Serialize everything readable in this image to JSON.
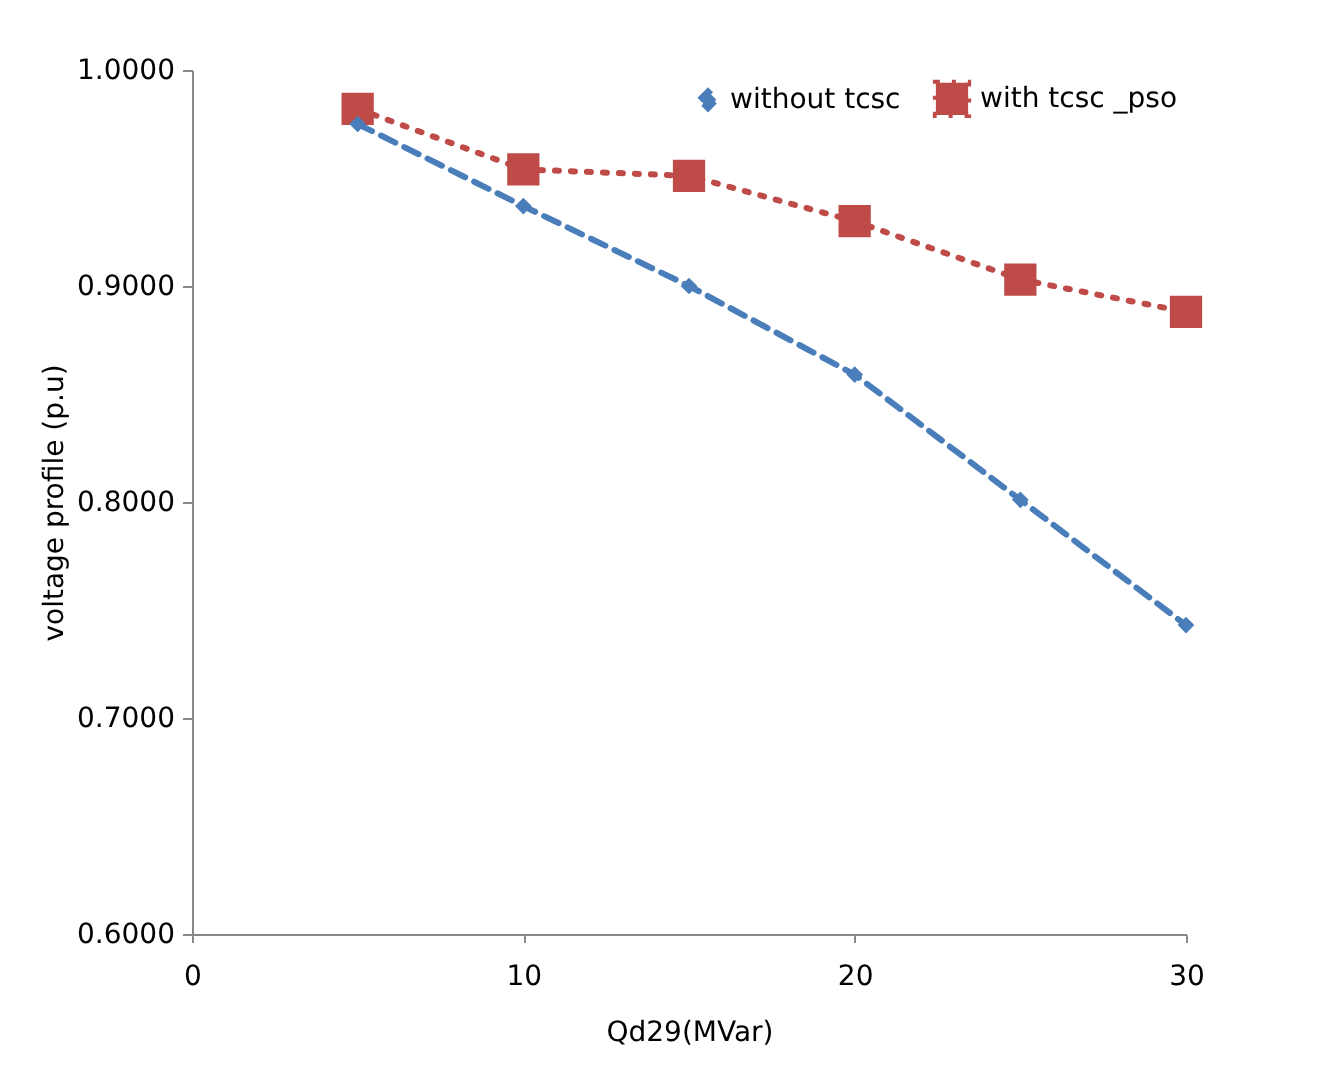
{
  "chart_data": {
    "type": "line",
    "xlabel": "Qd29(MVar)",
    "ylabel": "voltage profile (p.u)",
    "x": [
      5,
      10,
      15,
      20,
      25,
      30
    ],
    "series": [
      {
        "name": "without tcsc",
        "color": "#4a7ebb",
        "values": [
          0.975,
          0.937,
          0.9,
          0.859,
          0.801,
          0.743
        ],
        "marker": "diamond",
        "line_style": "dashed"
      },
      {
        "name": "with tcsc _pso",
        "color": "#be4b48",
        "values": [
          0.982,
          0.954,
          0.951,
          0.93,
          0.903,
          0.888
        ],
        "marker": "square",
        "line_style": "dotted"
      }
    ],
    "xlim": [
      0,
      30
    ],
    "xticks": [
      0,
      10,
      20,
      30
    ],
    "ylim": [
      0.6,
      1.0
    ],
    "yticks": [
      {
        "value": 0.6,
        "label": "0.6000"
      },
      {
        "value": 0.7,
        "label": "0.7000"
      },
      {
        "value": 0.8,
        "label": "0.8000"
      },
      {
        "value": 0.9,
        "label": "0.9000"
      },
      {
        "value": 1.0,
        "label": "1.0000"
      }
    ],
    "grid": false,
    "legend": "top right"
  }
}
